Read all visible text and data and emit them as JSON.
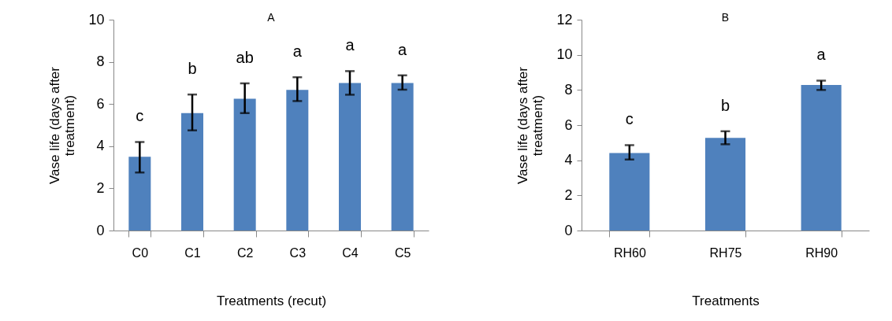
{
  "chart_data": [
    {
      "type": "bar",
      "title": "A",
      "xlabel": "Treatments (recut)",
      "ylabel": "Vase life (days after treatment)",
      "categories": [
        "C0",
        "C1",
        "C2",
        "C3",
        "C4",
        "C5"
      ],
      "values": [
        3.5,
        5.57,
        6.25,
        6.67,
        7.0,
        7.0
      ],
      "color": "#4f81bd",
      "errors": [
        [
          2.75,
          4.2
        ],
        [
          4.75,
          6.45
        ],
        [
          5.57,
          6.98
        ],
        [
          6.14,
          7.27
        ],
        [
          6.44,
          7.56
        ],
        [
          6.68,
          7.36
        ]
      ],
      "ylim": [
        0,
        10
      ],
      "yticks": [
        0,
        2,
        4,
        6,
        8,
        10
      ],
      "grid": false,
      "annotations": [
        "c",
        "b",
        "ab",
        "a",
        "a",
        "a"
      ]
    },
    {
      "type": "bar",
      "title": "B",
      "xlabel": "Treatments",
      "ylabel": "Vase life (days after treatment)",
      "categories": [
        "RH60",
        "RH75",
        "RH90"
      ],
      "values": [
        4.41,
        5.27,
        8.28
      ],
      "color": "#4f81bd",
      "errors": [
        [
          4.04,
          4.86
        ],
        [
          4.91,
          5.65
        ],
        [
          8.0,
          8.53
        ]
      ],
      "ylim": [
        0,
        12
      ],
      "yticks": [
        0,
        2,
        4,
        6,
        8,
        10,
        12
      ],
      "grid": false,
      "annotations": [
        "c",
        "b",
        "a"
      ]
    }
  ]
}
